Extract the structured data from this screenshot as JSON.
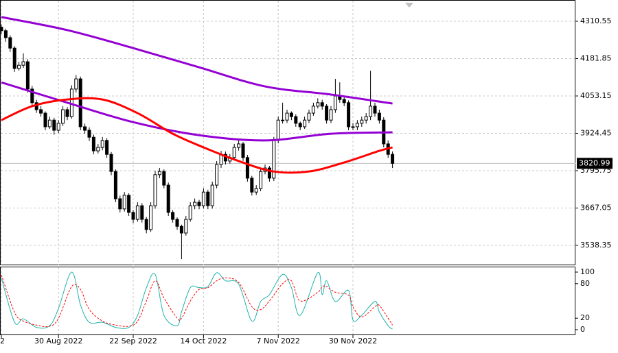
{
  "chart_data": [
    {
      "type": "candlestick",
      "categories": [
        "2",
        null,
        null,
        null,
        null,
        null,
        null,
        null,
        null,
        null,
        null,
        null,
        null,
        "30 Aug 2022",
        null,
        null,
        null,
        null,
        null,
        null,
        null,
        null,
        null,
        null,
        null,
        null,
        null,
        null,
        null,
        null,
        "22 Sep 2022",
        null,
        null,
        null,
        null,
        null,
        null,
        null,
        null,
        null,
        null,
        null,
        null,
        null,
        null,
        null,
        "14 Oct 2022",
        null,
        null,
        null,
        null,
        null,
        null,
        null,
        null,
        null,
        null,
        null,
        null,
        null,
        null,
        null,
        null,
        "7 Nov 2022",
        null,
        null,
        null,
        null,
        null,
        null,
        null,
        null,
        null,
        null,
        null,
        null,
        null,
        null,
        null,
        null,
        "30 Nov 2022",
        null,
        null,
        null,
        null,
        null,
        null,
        null,
        null,
        null
      ],
      "open": [
        4290,
        4278,
        4254,
        4218,
        4148,
        4159,
        4171,
        4077,
        4030,
        4006,
        3994,
        3947,
        3970,
        3935,
        3959,
        4006,
        3982,
        4077,
        4112,
        3947,
        3935,
        3911,
        3864,
        3876,
        3900,
        3852,
        3793,
        3699,
        3664,
        3711,
        3652,
        3628,
        3675,
        3628,
        3593,
        3675,
        3782,
        3793,
        3746,
        3652,
        3628,
        3604,
        3581,
        3628,
        3675,
        3687,
        3675,
        3722,
        3675,
        3746,
        3817,
        3852,
        3829,
        3841,
        3876,
        3888,
        3841,
        3770,
        3722,
        3734,
        3793,
        3805,
        3770,
        3900,
        3970,
        3970,
        3994,
        3982,
        3959,
        3947,
        3970,
        3994,
        4018,
        4030,
        4018,
        3970,
        4006,
        4053,
        4041,
        4030,
        3947,
        3947,
        3959,
        3970,
        3982,
        4018,
        3994,
        3970,
        3888,
        3852
      ],
      "high": [
        4300,
        4285,
        4262,
        4225,
        4171,
        4200,
        4180,
        4088,
        4040,
        4018,
        4000,
        3982,
        3978,
        3970,
        4018,
        4015,
        4090,
        4125,
        4120,
        3958,
        3945,
        3920,
        3888,
        3912,
        3908,
        3860,
        3800,
        3710,
        3722,
        3718,
        3660,
        3687,
        3684,
        3636,
        3687,
        3795,
        3805,
        3800,
        3755,
        3660,
        3635,
        3610,
        3640,
        3687,
        3700,
        3695,
        3735,
        3730,
        3758,
        3829,
        3864,
        3862,
        3853,
        3888,
        3900,
        3895,
        3850,
        3778,
        3746,
        3805,
        3817,
        3812,
        3912,
        3982,
        4030,
        4006,
        4000,
        3990,
        3965,
        3982,
        4006,
        4030,
        4045,
        4040,
        4025,
        4018,
        4112,
        4100,
        4050,
        4038,
        3960,
        3970,
        3982,
        3994,
        4140,
        4030,
        4006,
        3980,
        3900,
        3862
      ],
      "low": [
        4266,
        4240,
        4205,
        4136,
        4140,
        4150,
        4065,
        4020,
        3995,
        3982,
        3935,
        3940,
        3920,
        3925,
        3950,
        3970,
        3975,
        4065,
        3935,
        3923,
        3898,
        3852,
        3855,
        3866,
        3840,
        3780,
        3687,
        3652,
        3655,
        3640,
        3615,
        3620,
        3617,
        3580,
        3585,
        3665,
        3770,
        3735,
        3640,
        3617,
        3592,
        3491,
        3572,
        3620,
        3663,
        3663,
        3665,
        3663,
        3665,
        3735,
        3805,
        3817,
        3820,
        3832,
        3865,
        3829,
        3758,
        3710,
        3712,
        3725,
        3783,
        3758,
        3760,
        3890,
        3958,
        3960,
        3970,
        3947,
        3935,
        3940,
        3960,
        3985,
        4010,
        4006,
        3958,
        3960,
        3995,
        4030,
        4018,
        3935,
        3935,
        3935,
        3947,
        3958,
        3970,
        3982,
        3958,
        3876,
        3840,
        3805
      ],
      "close": [
        4278,
        4254,
        4218,
        4148,
        4159,
        4171,
        4077,
        4030,
        4006,
        3994,
        3947,
        3970,
        3935,
        3959,
        4006,
        3982,
        4077,
        4112,
        3947,
        3935,
        3911,
        3864,
        3876,
        3900,
        3852,
        3793,
        3699,
        3664,
        3711,
        3652,
        3628,
        3675,
        3628,
        3593,
        3675,
        3782,
        3793,
        3746,
        3652,
        3628,
        3604,
        3581,
        3628,
        3675,
        3687,
        3675,
        3722,
        3675,
        3746,
        3817,
        3852,
        3829,
        3841,
        3876,
        3888,
        3841,
        3770,
        3722,
        3734,
        3793,
        3805,
        3770,
        3900,
        3970,
        3970,
        3994,
        3982,
        3959,
        3947,
        3970,
        3994,
        4018,
        4030,
        4018,
        3970,
        4006,
        4053,
        4041,
        4030,
        3947,
        3947,
        3959,
        3970,
        3982,
        4018,
        3994,
        3970,
        3888,
        3852,
        3820.99
      ],
      "series": [
        {
          "color": "#9400d3",
          "width": 3,
          "x": [
            0,
            15,
            30,
            45,
            60,
            75,
            89
          ],
          "values": [
            4325,
            4280,
            4218,
            4152,
            4086,
            4058,
            4027
          ]
        },
        {
          "color": "#9400d3",
          "width": 3,
          "x": [
            0,
            15,
            30,
            45,
            60,
            75,
            89
          ],
          "values": [
            4100,
            4030,
            3963,
            3918,
            3900,
            3923,
            3928
          ]
        },
        {
          "color": "#ff0000",
          "width": 3,
          "x": [
            0,
            7,
            15,
            23,
            31,
            39,
            46,
            54,
            62,
            70,
            78,
            86,
            89
          ],
          "values": [
            3970,
            4018,
            4041,
            4041,
            3994,
            3923,
            3876,
            3829,
            3793,
            3793,
            3824,
            3864,
            3876
          ]
        }
      ],
      "ylim": [
        3469.9,
        4383.75
      ],
      "yticks": [
        4310.55,
        4181.85,
        4053.15,
        3924.45,
        3795.75,
        3667.05,
        3538.35
      ],
      "last_price": 3820.99,
      "grid": true
    },
    {
      "type": "line",
      "series": [
        {
          "color": "#20b2aa",
          "dash": false,
          "x": [
            0,
            3,
            5,
            8,
            11,
            13,
            16,
            18,
            20,
            23,
            26,
            29,
            31,
            33,
            35,
            37,
            40,
            41,
            43,
            45,
            47,
            49,
            51,
            54,
            57,
            59,
            61,
            64,
            66,
            68,
            72,
            73,
            74,
            76,
            79,
            80,
            82,
            85,
            86,
            88,
            89
          ],
          "values": [
            90,
            13,
            19,
            4,
            7,
            37,
            100,
            43,
            13,
            13,
            4,
            4,
            25,
            73,
            96,
            25,
            7,
            31,
            73,
            73,
            75,
            99,
            85,
            79,
            15,
            49,
            61,
            96,
            73,
            25,
            99,
            61,
            85,
            49,
            68,
            17,
            25,
            49,
            31,
            7,
            1
          ]
        },
        {
          "color": "#ff0000",
          "dash": true,
          "x": [
            0,
            3,
            5,
            8,
            11,
            13,
            16,
            18,
            20,
            23,
            26,
            29,
            31,
            33,
            35,
            37,
            40,
            41,
            43,
            45,
            47,
            49,
            51,
            54,
            57,
            59,
            61,
            64,
            66,
            68,
            72,
            73,
            74,
            76,
            79,
            80,
            82,
            85,
            86,
            88,
            89
          ],
          "values": [
            95,
            30,
            15,
            8,
            6,
            20,
            75,
            70,
            35,
            15,
            8,
            6,
            15,
            50,
            85,
            55,
            20,
            20,
            50,
            70,
            73,
            85,
            90,
            82,
            40,
            35,
            50,
            80,
            85,
            50,
            65,
            75,
            75,
            65,
            60,
            40,
            22,
            40,
            42,
            20,
            8
          ]
        }
      ],
      "ylim": [
        -8.3,
        108.3
      ],
      "yticks": [
        100,
        80,
        20,
        0
      ]
    }
  ]
}
